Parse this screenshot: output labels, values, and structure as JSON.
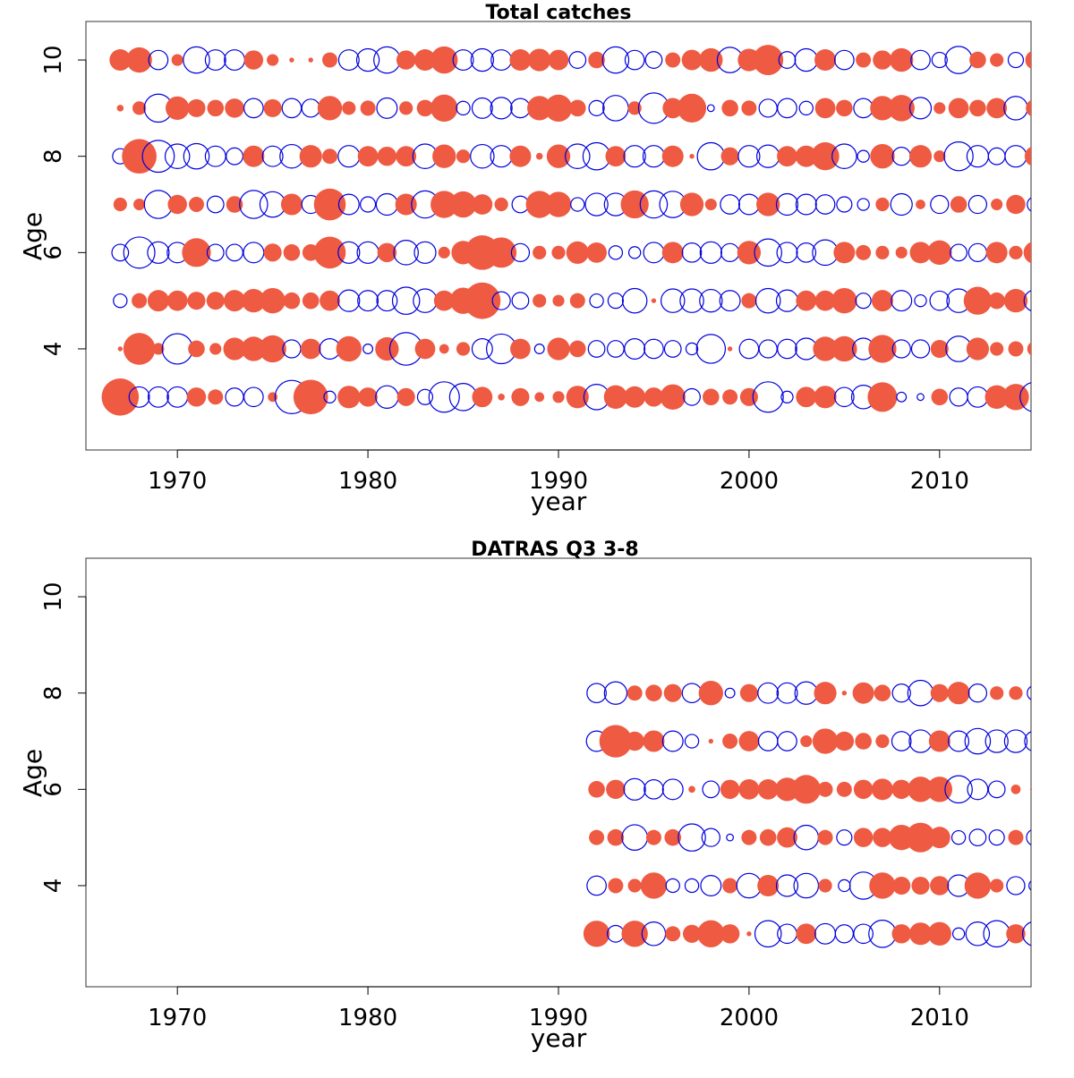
{
  "colors": {
    "positive": "#EE5A42",
    "negative": "#0000DD"
  },
  "chart_data": [
    {
      "type": "bubble",
      "title": "Total catches",
      "xlabel": "year",
      "ylabel": "Age",
      "xlim": [
        1965.2,
        2014.8
      ],
      "ylim": [
        1.9,
        10.8
      ],
      "xticks": [
        1970,
        1980,
        1990,
        2000,
        2010
      ],
      "yticks": [
        4,
        6,
        8,
        10
      ],
      "ages": [
        3,
        4,
        5,
        6,
        7,
        8,
        9,
        10
      ],
      "years": [
        1967,
        1968,
        1969,
        1970,
        1971,
        1972,
        1973,
        1974,
        1975,
        1976,
        1977,
        1978,
        1979,
        1980,
        1981,
        1982,
        1983,
        1984,
        1985,
        1986,
        1987,
        1988,
        1989,
        1990,
        1991,
        1992,
        1993,
        1994,
        1995,
        1996,
        1997,
        1998,
        1999,
        2000,
        2001,
        2002,
        2003,
        2004,
        2005,
        2006,
        2007,
        2008,
        2009,
        2010,
        2011,
        2012,
        2013,
        2014,
        2015
      ],
      "residuals": [
        [
          3.0,
          -0.9,
          -0.9,
          -0.9,
          0.8,
          0.5,
          -0.7,
          -0.8,
          0.2,
          -2.4,
          2.6,
          -0.3,
          1.1,
          0.8,
          -1.1,
          0.7,
          -0.5,
          -2.0,
          -1.6,
          0.9,
          0.1,
          0.7,
          0.2,
          0.3,
          1.1,
          -1.4,
          1.2,
          1.0,
          0.8,
          1.4,
          -0.6,
          0.6,
          0.5,
          0.7,
          -2.0,
          -0.3,
          0.9,
          1.1,
          -0.8,
          -1.2,
          1.9,
          -0.2,
          -0.1,
          0.6,
          -0.7,
          -0.9,
          1.2,
          1.5,
          -1.9
        ],
        [
          0.05,
          2.2,
          0.3,
          -2.0,
          0.6,
          0.3,
          1.1,
          1.3,
          1.6,
          -0.7,
          0.9,
          -0.9,
          1.4,
          -0.2,
          1.2,
          -2.3,
          0.9,
          0.2,
          0.4,
          -0.9,
          -1.9,
          0.9,
          -0.2,
          1.1,
          0.6,
          -0.6,
          -0.6,
          -0.9,
          -0.8,
          -0.6,
          -0.3,
          -1.8,
          0.05,
          -0.8,
          -0.7,
          -0.8,
          -1.0,
          1.3,
          1.4,
          -1.0,
          1.7,
          -0.7,
          -0.7,
          0.7,
          -1.4,
          1.1,
          0.4,
          0.5,
          0.5
        ],
        [
          -0.4,
          0.5,
          1.0,
          0.9,
          0.7,
          0.7,
          1.0,
          1.2,
          1.4,
          0.6,
          0.6,
          0.9,
          -1.0,
          -0.9,
          -0.9,
          -1.6,
          -1.2,
          0.9,
          1.5,
          2.9,
          -0.7,
          -0.6,
          0.4,
          0.3,
          0.5,
          -0.4,
          -0.5,
          -1.3,
          0.05,
          -1.2,
          -1.2,
          -1.1,
          -0.9,
          0.5,
          -1.3,
          -1.0,
          0.9,
          0.9,
          1.4,
          -0.5,
          1.0,
          -0.9,
          -0.3,
          -0.8,
          -1.2,
          1.7,
          0.6,
          1.2,
          -1.0
        ],
        [
          -0.6,
          -2.1,
          -1.0,
          -0.9,
          1.8,
          -0.6,
          -0.6,
          -0.9,
          0.7,
          0.6,
          0.6,
          2.2,
          -1.0,
          -1.0,
          0.8,
          -1.3,
          -1.0,
          0.3,
          1.2,
          2.6,
          2.0,
          -0.7,
          0.4,
          0.4,
          1.1,
          0.9,
          -0.4,
          -0.3,
          -0.9,
          1.0,
          -0.8,
          -1.0,
          -0.7,
          1.2,
          -1.6,
          -0.9,
          -0.8,
          -1.4,
          1.0,
          0.5,
          0.4,
          0.3,
          1.0,
          1.3,
          -0.6,
          -0.7,
          1.0,
          0.4,
          1.1
        ],
        [
          0.4,
          0.3,
          -1.7,
          0.8,
          0.5,
          -0.6,
          0.6,
          -1.7,
          -1.4,
          1.0,
          -0.7,
          2.2,
          -0.9,
          -0.5,
          -1.0,
          1.0,
          -1.6,
          1.6,
          1.5,
          0.9,
          0.4,
          -0.6,
          1.6,
          1.4,
          -0.4,
          -1.1,
          -1.1,
          1.7,
          -1.6,
          -1.5,
          1.2,
          0.3,
          -0.8,
          -0.9,
          1.2,
          -1.0,
          -0.9,
          -0.8,
          -0.5,
          -0.3,
          0.4,
          -1.0,
          0.2,
          -0.7,
          0.6,
          -0.7,
          0.3,
          0.8,
          -0.5
        ],
        [
          -0.5,
          2.6,
          -2.2,
          -1.3,
          -1.4,
          -0.9,
          -0.6,
          1.0,
          -0.9,
          -1.2,
          1.1,
          0.5,
          -1.0,
          0.9,
          0.8,
          0.9,
          -1.3,
          1.2,
          0.4,
          -1.2,
          -1.0,
          1.0,
          0.1,
          1.2,
          -1.3,
          -1.6,
          0.9,
          -1.0,
          -1.0,
          1.0,
          0.05,
          -1.6,
          0.7,
          -1.0,
          -1.1,
          0.9,
          1.0,
          1.7,
          -1.3,
          -0.3,
          1.3,
          -0.7,
          1.1,
          0.3,
          -1.8,
          -1.0,
          -0.6,
          -1.0,
          0.9
        ],
        [
          0.1,
          0.4,
          -1.7,
          1.2,
          0.7,
          0.6,
          0.8,
          -0.8,
          0.7,
          -0.8,
          -0.7,
          1.3,
          0.4,
          0.5,
          -0.9,
          0.4,
          0.6,
          1.6,
          -0.4,
          -0.9,
          -1.0,
          -0.8,
          1.3,
          1.6,
          0.6,
          -0.5,
          -1.4,
          0.4,
          -2.0,
          0.9,
          1.8,
          -0.1,
          0.6,
          0.5,
          -0.7,
          -0.8,
          -0.4,
          0.9,
          0.6,
          -0.8,
          1.3,
          1.5,
          -1.0,
          0.3,
          0.9,
          0.6,
          0.9,
          -1.2,
          0.7
        ],
        [
          1.0,
          1.4,
          -0.8,
          0.3,
          -1.5,
          -0.9,
          -0.9,
          0.8,
          0.3,
          0.05,
          0.05,
          0.5,
          -0.9,
          -1.1,
          -1.5,
          0.8,
          1.0,
          1.6,
          -0.9,
          -1.1,
          -0.9,
          1.0,
          1.1,
          0.9,
          -0.6,
          0.6,
          -1.5,
          -0.8,
          -0.6,
          0.5,
          0.9,
          1.2,
          -1.4,
          1.1,
          2.0,
          -0.6,
          -1.1,
          1.0,
          -0.8,
          0.5,
          0.8,
          1.2,
          -0.8,
          -0.5,
          -1.6,
          0.6,
          0.4,
          -0.5,
          0.8
        ]
      ]
    },
    {
      "type": "bubble",
      "title": "DATRAS Q3 3-8",
      "xlabel": "year",
      "ylabel": "Age",
      "xlim": [
        1965.2,
        2014.8
      ],
      "ylim": [
        1.9,
        10.8
      ],
      "xticks": [
        1970,
        1980,
        1990,
        2000,
        2010
      ],
      "yticks": [
        4,
        6,
        8,
        10
      ],
      "ages": [
        3,
        4,
        5,
        6,
        7,
        8
      ],
      "years": [
        1992,
        1993,
        1994,
        1995,
        1996,
        1997,
        1998,
        1999,
        2000,
        2001,
        2002,
        2003,
        2004,
        2005,
        2006,
        2007,
        2008,
        2009,
        2010,
        2011,
        2012,
        2013,
        2014,
        2015
      ],
      "residuals": [
        [
          1.5,
          -0.6,
          1.5,
          -1.2,
          0.5,
          0.7,
          1.6,
          0.8,
          0.05,
          -1.5,
          -0.8,
          0.9,
          -0.9,
          -0.7,
          -0.8,
          -1.6,
          0.8,
          1.1,
          1.2,
          -0.3,
          -1.2,
          -1.5,
          0.8,
          -1.3
        ],
        [
          -0.8,
          0.5,
          0.4,
          1.5,
          -0.4,
          -0.4,
          -0.9,
          0.5,
          -1.3,
          1.0,
          -1.0,
          -1.3,
          0.4,
          -0.3,
          -1.6,
          1.5,
          0.7,
          0.7,
          0.8,
          -1.0,
          1.5,
          0.4,
          -0.7,
          -0.3
        ],
        [
          0.5,
          0.6,
          -1.4,
          0.5,
          0.6,
          -1.6,
          -0.7,
          -0.1,
          0.5,
          0.6,
          0.9,
          -1.3,
          0.5,
          -0.5,
          0.8,
          0.8,
          1.4,
          1.9,
          1.0,
          -0.4,
          -0.6,
          -0.5,
          0.5,
          -0.6
        ],
        [
          0.6,
          0.8,
          -1.0,
          -0.8,
          -0.9,
          0.1,
          -0.6,
          0.8,
          0.9,
          0.9,
          1.2,
          1.8,
          0.5,
          0.5,
          0.8,
          1.0,
          0.8,
          1.4,
          1.4,
          -1.6,
          -0.9,
          -0.6,
          0.2,
          0.2
        ],
        [
          -0.9,
          2.3,
          0.8,
          1.0,
          -0.9,
          -0.4,
          0.05,
          0.5,
          0.9,
          -0.8,
          -0.8,
          0.3,
          1.4,
          0.8,
          0.6,
          0.4,
          -0.8,
          -1.1,
          1.0,
          -0.9,
          -1.4,
          -1.1,
          -1.1,
          -0.9
        ],
        [
          -0.8,
          -1.1,
          0.5,
          0.6,
          0.7,
          -0.8,
          1.3,
          -0.2,
          0.7,
          -0.9,
          -0.9,
          -1.1,
          1.1,
          0.05,
          1.0,
          0.6,
          -0.7,
          -1.4,
          0.7,
          1.1,
          -0.7,
          0.4,
          0.4,
          -0.5
        ]
      ]
    }
  ]
}
